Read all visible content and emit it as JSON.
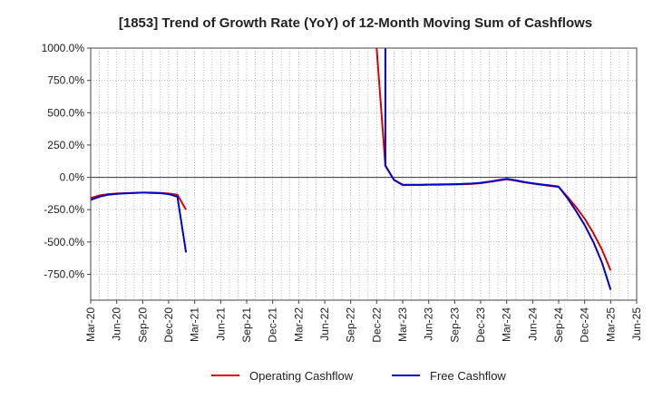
{
  "chart_data": {
    "type": "line",
    "title": "[1853]  Trend of Growth Rate (YoY) of 12-Month Moving Sum of Cashflows",
    "xlabel": "",
    "ylabel": "",
    "ylim": [
      -950,
      1000
    ],
    "y_ticks": [
      1000,
      750,
      500,
      250,
      0,
      -250,
      -500,
      -750
    ],
    "y_tick_labels": [
      "1000.0%",
      "750.0%",
      "500.0%",
      "250.0%",
      "0.0%",
      "-250.0%",
      "-500.0%",
      "-750.0%"
    ],
    "x_range": [
      "2020-03",
      "2025-06"
    ],
    "x_ticks": [
      "2020-03",
      "2020-06",
      "2020-09",
      "2020-12",
      "2021-03",
      "2021-06",
      "2021-09",
      "2021-12",
      "2022-03",
      "2022-06",
      "2022-09",
      "2022-12",
      "2023-03",
      "2023-06",
      "2023-09",
      "2023-12",
      "2024-03",
      "2024-06",
      "2024-09",
      "2024-12",
      "2025-03",
      "2025-06"
    ],
    "x_tick_labels": [
      "Mar-20",
      "Jun-20",
      "Sep-20",
      "Dec-20",
      "Mar-21",
      "Jun-21",
      "Sep-21",
      "Dec-21",
      "Mar-22",
      "Jun-22",
      "Sep-22",
      "Dec-22",
      "Mar-23",
      "Jun-23",
      "Sep-23",
      "Dec-23",
      "Mar-24",
      "Jun-24",
      "Sep-24",
      "Dec-24",
      "Mar-25",
      "Jun-25"
    ],
    "grid": true,
    "legend_position": "bottom",
    "series": [
      {
        "name": "Operating Cashflow",
        "color": "#dd0000",
        "points": [
          [
            "2020-03",
            -160
          ],
          [
            "2020-04",
            -140
          ],
          [
            "2020-05",
            -130
          ],
          [
            "2020-06",
            -125
          ],
          [
            "2020-07",
            -122
          ],
          [
            "2020-08",
            -120
          ],
          [
            "2020-09",
            -118
          ],
          [
            "2020-10",
            -118
          ],
          [
            "2020-11",
            -120
          ],
          [
            "2020-12",
            -125
          ],
          [
            "2021-01",
            -135
          ],
          [
            "2021-02",
            -250
          ],
          [
            "2022-12",
            1000
          ],
          [
            "2023-01",
            90
          ],
          [
            "2023-02",
            -20
          ],
          [
            "2023-03",
            -60
          ],
          [
            "2023-04",
            -60
          ],
          [
            "2023-05",
            -59
          ],
          [
            "2023-06",
            -58
          ],
          [
            "2023-07",
            -57
          ],
          [
            "2023-08",
            -56
          ],
          [
            "2023-09",
            -55
          ],
          [
            "2023-10",
            -53
          ],
          [
            "2023-11",
            -50
          ],
          [
            "2023-12",
            -45
          ],
          [
            "2024-01",
            -35
          ],
          [
            "2024-02",
            -25
          ],
          [
            "2024-03",
            -15
          ],
          [
            "2024-04",
            -25
          ],
          [
            "2024-05",
            -38
          ],
          [
            "2024-06",
            -48
          ],
          [
            "2024-07",
            -58
          ],
          [
            "2024-08",
            -66
          ],
          [
            "2024-09",
            -75
          ],
          [
            "2024-10",
            -150
          ],
          [
            "2024-11",
            -230
          ],
          [
            "2024-12",
            -320
          ],
          [
            "2025-01",
            -430
          ],
          [
            "2025-02",
            -560
          ],
          [
            "2025-03",
            -720
          ]
        ]
      },
      {
        "name": "Free Cashflow",
        "color": "#0000cc",
        "points": [
          [
            "2020-03",
            -175
          ],
          [
            "2020-04",
            -150
          ],
          [
            "2020-05",
            -135
          ],
          [
            "2020-06",
            -128
          ],
          [
            "2020-07",
            -124
          ],
          [
            "2020-08",
            -120
          ],
          [
            "2020-09",
            -118
          ],
          [
            "2020-10",
            -120
          ],
          [
            "2020-11",
            -122
          ],
          [
            "2020-12",
            -130
          ],
          [
            "2021-01",
            -150
          ],
          [
            "2021-02",
            -580
          ],
          [
            "2023-01",
            1000
          ],
          [
            "2023-01",
            90
          ],
          [
            "2023-02",
            -20
          ],
          [
            "2023-03",
            -58
          ],
          [
            "2023-04",
            -58
          ],
          [
            "2023-05",
            -57
          ],
          [
            "2023-06",
            -56
          ],
          [
            "2023-07",
            -55
          ],
          [
            "2023-08",
            -54
          ],
          [
            "2023-09",
            -53
          ],
          [
            "2023-10",
            -51
          ],
          [
            "2023-11",
            -48
          ],
          [
            "2023-12",
            -42
          ],
          [
            "2024-01",
            -33
          ],
          [
            "2024-02",
            -22
          ],
          [
            "2024-03",
            -12
          ],
          [
            "2024-04",
            -22
          ],
          [
            "2024-05",
            -35
          ],
          [
            "2024-06",
            -46
          ],
          [
            "2024-07",
            -55
          ],
          [
            "2024-08",
            -63
          ],
          [
            "2024-09",
            -72
          ],
          [
            "2024-10",
            -160
          ],
          [
            "2024-11",
            -260
          ],
          [
            "2024-12",
            -370
          ],
          [
            "2025-01",
            -500
          ],
          [
            "2025-02",
            -660
          ],
          [
            "2025-03",
            -870
          ]
        ]
      }
    ]
  }
}
